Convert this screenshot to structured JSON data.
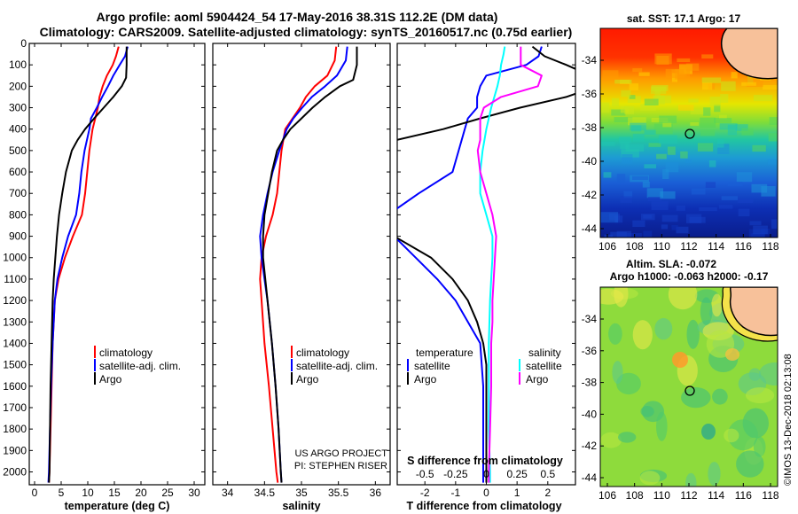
{
  "header": {
    "title_line1": "Argo profile: aoml 5904424_54 17-May-2016 38.31S 112.2E (DM data)",
    "title_line2": "Climatology: CARS2009. Satellite-adjusted climatology: synTS_20160517.nc (0.75d earlier)"
  },
  "colors": {
    "climatology": "#ff0000",
    "satellite": "#0000ff",
    "argo": "#000000",
    "salinity_satellite": "#00ffff",
    "salinity_argo": "#ff00ff"
  },
  "depth_axis": {
    "ylim": [
      0,
      2060
    ],
    "ticks": [
      0,
      100,
      200,
      300,
      400,
      500,
      600,
      700,
      800,
      900,
      1000,
      1100,
      1200,
      1300,
      1400,
      1500,
      1600,
      1700,
      1800,
      1900,
      2000
    ],
    "tick_labels": [
      "0",
      "100",
      "200",
      "300",
      "400",
      "500",
      "600",
      "700",
      "800",
      "900",
      "1000",
      "1100",
      "1200",
      "1300",
      "1400",
      "1500",
      "1600",
      "1700",
      "1800",
      "1900",
      "2000"
    ]
  },
  "chart_data": [
    {
      "id": "temperature",
      "type": "line",
      "xlabel": "temperature (deg C)",
      "xlim": [
        -1,
        32
      ],
      "xticks": [
        0,
        5,
        10,
        15,
        20,
        25,
        30
      ],
      "xtick_labels": [
        "0",
        "5",
        "10",
        "15",
        "20",
        "25",
        "30"
      ],
      "legend": [
        "climatology",
        "satellite-adj. clim.",
        "Argo"
      ],
      "series": [
        {
          "name": "climatology",
          "color_key": "climatology",
          "depth": [
            15,
            60,
            100,
            150,
            200,
            250,
            300,
            350,
            400,
            500,
            600,
            700,
            800,
            900,
            1000,
            1100,
            1200,
            1400,
            1600,
            1800,
            2000,
            2050
          ],
          "values": [
            15.8,
            15.3,
            14.7,
            13.6,
            12.8,
            12.2,
            11.9,
            11.4,
            10.9,
            10.3,
            9.9,
            9.5,
            8.9,
            7.2,
            5.7,
            4.5,
            3.8,
            3.4,
            3.2,
            3.0,
            2.8,
            2.7
          ]
        },
        {
          "name": "satellite-adj. clim.",
          "color_key": "satellite",
          "depth": [
            15,
            60,
            100,
            150,
            200,
            250,
            300,
            350,
            400,
            500,
            600,
            700,
            800,
            900,
            1000,
            1100,
            1200,
            1400,
            1600,
            1800,
            2000,
            2050
          ],
          "values": [
            17.5,
            17.0,
            16.0,
            14.8,
            13.8,
            12.7,
            11.7,
            10.6,
            10.3,
            9.4,
            8.8,
            8.4,
            7.8,
            6.3,
            5.2,
            4.3,
            3.8,
            3.4,
            3.1,
            2.9,
            2.7,
            2.6
          ]
        },
        {
          "name": "Argo",
          "color_key": "argo",
          "depth": [
            15,
            100,
            160,
            200,
            250,
            300,
            350,
            400,
            450,
            500,
            600,
            700,
            800,
            900,
            1000,
            1100,
            1200,
            1400,
            1600,
            1800,
            2000,
            2050
          ],
          "values": [
            17.3,
            17.3,
            17.2,
            16.4,
            14.8,
            13.0,
            11.2,
            9.5,
            8.1,
            7.0,
            5.9,
            5.2,
            4.6,
            4.2,
            3.9,
            3.6,
            3.4,
            3.2,
            3.0,
            2.9,
            2.8,
            2.7
          ]
        }
      ]
    },
    {
      "id": "salinity",
      "type": "line",
      "xlabel": "salinity",
      "xlim": [
        33.8,
        36.2
      ],
      "xticks": [
        34,
        34.5,
        35,
        35.5,
        36
      ],
      "xtick_labels": [
        "34",
        "34.5",
        "35",
        "35.5",
        "36"
      ],
      "legend": [
        "climatology",
        "satellite-adj. clim.",
        "Argo"
      ],
      "credit": [
        "US ARGO PROJECT",
        "PI: STEPHEN RISER"
      ],
      "series": [
        {
          "name": "climatology",
          "color_key": "climatology",
          "depth": [
            15,
            80,
            150,
            200,
            250,
            300,
            350,
            400,
            500,
            600,
            700,
            800,
            900,
            1000,
            1100,
            1200,
            1400,
            1600,
            1800,
            2000,
            2050
          ],
          "values": [
            35.47,
            35.45,
            35.35,
            35.18,
            35.06,
            34.98,
            34.88,
            34.78,
            34.73,
            34.7,
            34.67,
            34.61,
            34.52,
            34.46,
            34.44,
            34.46,
            34.5,
            34.56,
            34.61,
            34.66,
            34.68
          ]
        },
        {
          "name": "satellite-adj. clim.",
          "color_key": "satellite",
          "depth": [
            15,
            80,
            150,
            200,
            250,
            300,
            350,
            400,
            500,
            600,
            700,
            800,
            900,
            1000,
            1100,
            1200,
            1400,
            1600,
            1800,
            2000,
            2050
          ],
          "values": [
            35.62,
            35.6,
            35.48,
            35.32,
            35.14,
            35.01,
            34.89,
            34.8,
            34.7,
            34.61,
            34.54,
            34.48,
            34.44,
            34.46,
            34.5,
            34.54,
            34.6,
            34.65,
            34.69,
            34.72,
            34.73
          ]
        },
        {
          "name": "Argo",
          "color_key": "argo",
          "depth": [
            15,
            100,
            170,
            200,
            250,
            300,
            350,
            400,
            450,
            500,
            600,
            700,
            800,
            900,
            1000,
            1100,
            1200,
            1400,
            1600,
            1800,
            2000,
            2050
          ],
          "values": [
            35.75,
            35.75,
            35.7,
            35.52,
            35.32,
            35.15,
            35.0,
            34.85,
            34.75,
            34.67,
            34.6,
            34.55,
            34.5,
            34.48,
            34.48,
            34.51,
            34.54,
            34.6,
            34.65,
            34.69,
            34.72,
            34.73
          ]
        }
      ]
    },
    {
      "id": "differences",
      "type": "line",
      "xlabel": "T difference from climatology",
      "xlim": [
        -2.9,
        2.9
      ],
      "xticks": [
        -2,
        -1,
        0,
        1,
        2
      ],
      "xtick_labels": [
        "-2",
        "-1",
        "0",
        "1",
        "2"
      ],
      "s_xlabel": "S difference from climatology",
      "s_xticks": [
        -0.5,
        -0.25,
        0,
        0.25,
        0.5
      ],
      "s_xtick_labels": [
        "-0.5",
        "-0.25",
        "0",
        "0.25",
        "0.5"
      ],
      "s_scale": 4,
      "legend_t_title": "temperature",
      "legend_t": [
        "satellite",
        "Argo"
      ],
      "legend_s_title": "salinity",
      "legend_s": [
        "satellite",
        "Argo"
      ],
      "series": [
        {
          "name": "T satellite",
          "color_key": "satellite",
          "depth": [
            15,
            60,
            100,
            150,
            200,
            250,
            300,
            350,
            400,
            500,
            600,
            700,
            800,
            900,
            1000,
            1100,
            1200,
            1400,
            1600,
            1800,
            2000,
            2050
          ],
          "values": [
            1.8,
            1.7,
            1.3,
            0.0,
            -0.2,
            -0.3,
            -0.3,
            -0.6,
            -0.7,
            -0.9,
            -1.1,
            -2.2,
            -3.2,
            -3.0,
            -2.3,
            -1.6,
            -1.0,
            -0.2,
            -0.1,
            -0.1,
            -0.1,
            -0.1
          ]
        },
        {
          "name": "T Argo",
          "color_key": "argo",
          "depth": [
            15,
            60,
            100,
            150,
            200,
            250,
            300,
            350,
            400,
            450,
            500,
            600,
            700,
            800,
            900,
            1000,
            1100,
            1200,
            1300,
            1400,
            1500,
            1600,
            1800,
            2000,
            2050
          ],
          "values": [
            1.5,
            1.9,
            2.6,
            3.4,
            3.6,
            2.6,
            1.1,
            -0.2,
            -1.4,
            -2.9,
            -3.5,
            -4.2,
            -4.6,
            -5.0,
            -3.0,
            -1.8,
            -1.1,
            -0.6,
            -0.3,
            -0.1,
            0.0,
            0.0,
            0.0,
            0.0,
            0.0
          ]
        },
        {
          "name": "S satellite",
          "color_key": "salinity_satellite",
          "depth": [
            15,
            50,
            100,
            150,
            200,
            300,
            400,
            500,
            600,
            700,
            800,
            900,
            1000,
            1100,
            1200,
            1400,
            1600,
            1800,
            2000,
            2050
          ],
          "values": [
            0.15,
            0.14,
            0.12,
            0.11,
            0.09,
            0.04,
            0.0,
            -0.03,
            -0.05,
            -0.05,
            0.0,
            0.05,
            0.05,
            0.04,
            0.03,
            0.02,
            0.02,
            0.02,
            0.03,
            0.03
          ]
        },
        {
          "name": "S Argo",
          "color_key": "salinity_argo",
          "depth": [
            15,
            60,
            100,
            150,
            200,
            250,
            300,
            350,
            400,
            450,
            500,
            600,
            700,
            800,
            900,
            1000,
            1100,
            1200,
            1300,
            1400,
            1500,
            1600,
            1800,
            2000,
            2050
          ],
          "values": [
            0.28,
            0.28,
            0.28,
            0.45,
            0.42,
            0.12,
            -0.02,
            -0.05,
            -0.05,
            -0.05,
            -0.07,
            -0.05,
            0.0,
            0.05,
            0.08,
            0.07,
            0.06,
            0.05,
            0.05,
            0.04,
            0.04,
            0.04,
            0.03,
            0.02,
            0.02
          ]
        }
      ]
    }
  ],
  "maps": {
    "sst": {
      "title": "sat. SST: 17.1  Argo: 17",
      "lat_ticks": [
        "-34",
        "-36",
        "-38",
        "-40",
        "-42",
        "-44"
      ],
      "lon_ticks": [
        "106",
        "108",
        "110",
        "112",
        "114",
        "116",
        "118"
      ]
    },
    "sla": {
      "title1": "Altim. SLA: -0.072",
      "title2": "Argo h1000: -0.063 h2000: -0.17",
      "lat_ticks": [
        "-34",
        "-36",
        "-38",
        "-40",
        "-42",
        "-44"
      ],
      "lon_ticks": [
        "106",
        "108",
        "110",
        "112",
        "114",
        "116",
        "118"
      ]
    },
    "argo_position": {
      "lon": 112.2,
      "lat": -38.31
    }
  },
  "footer": {
    "stamp": "©IMOS 13-Dec-2018 02:13:08"
  }
}
